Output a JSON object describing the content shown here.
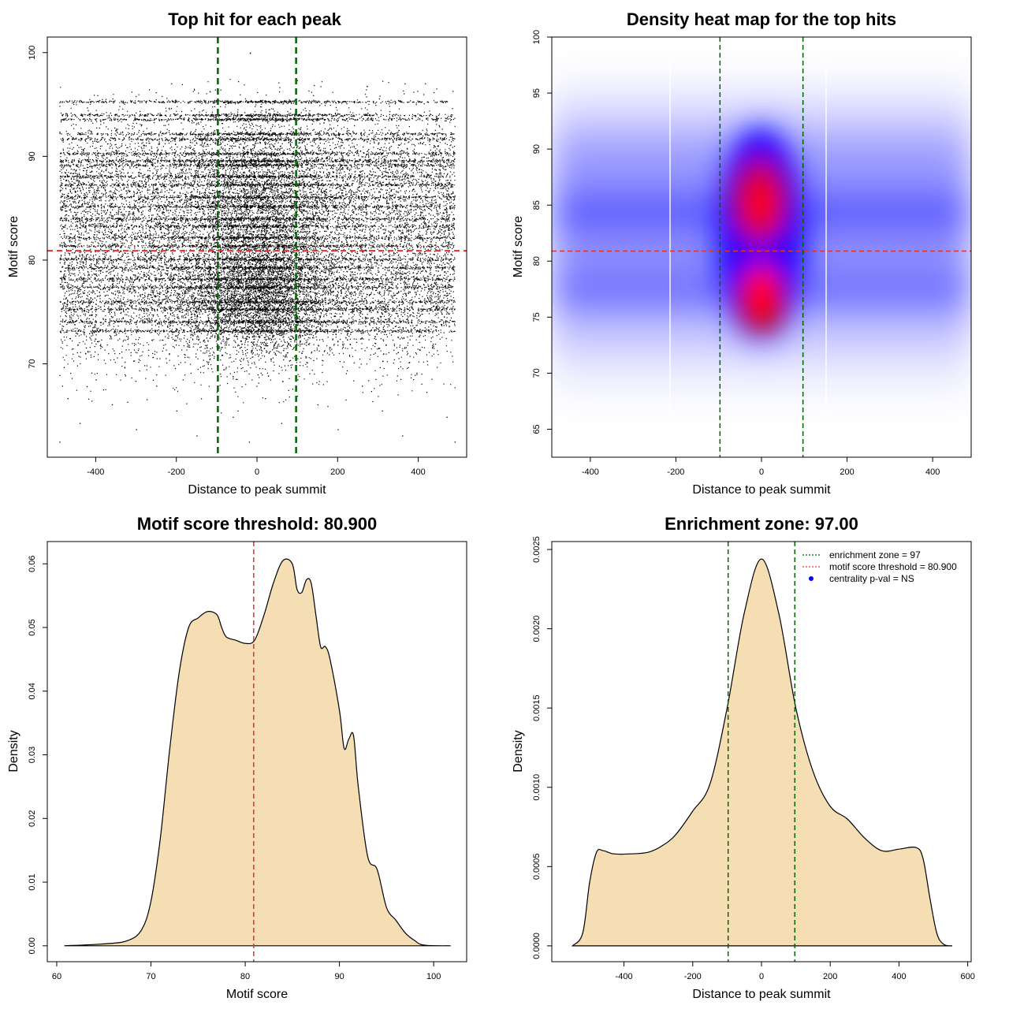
{
  "chart_data": [
    {
      "type": "scatter",
      "title": "Top hit for each peak",
      "xlabel": "Distance to peak summit",
      "ylabel": "Motif score",
      "xlim": [
        -520,
        520
      ],
      "ylim": [
        61,
        101.5
      ],
      "xticks": [
        -400,
        -200,
        0,
        200,
        400
      ],
      "yticks": [
        70,
        80,
        90,
        100
      ],
      "vlines": [
        -97,
        97
      ],
      "hline": 80.9,
      "series": [
        {
          "n_points": 30000,
          "x_range": [
            -490,
            490
          ],
          "y_range": [
            62,
            100
          ]
        }
      ],
      "grid": false
    },
    {
      "type": "heatmap",
      "title": "Density heat map for the top hits",
      "xlabel": "Distance to peak summit",
      "ylabel": "Motif score",
      "xlim": [
        -490,
        490
      ],
      "ylim": [
        62.5,
        100
      ],
      "xticks": [
        -400,
        -200,
        0,
        200,
        400
      ],
      "yticks": [
        65,
        70,
        75,
        80,
        85,
        90,
        95,
        100
      ],
      "vlines": [
        -97,
        97
      ],
      "hline": 80.9,
      "hotspots": [
        {
          "x": 0,
          "y": 76.5,
          "level": "max"
        },
        {
          "x": 0,
          "y": 85,
          "level": "high"
        }
      ],
      "colorscale": [
        "#ffffff",
        "#0000ff",
        "#ff0000"
      ]
    },
    {
      "type": "area",
      "title": "Motif score threshold: 80.900",
      "xlabel": "Motif score",
      "ylabel": "Density",
      "xlim": [
        59,
        103.5
      ],
      "ylim": [
        -0.0025,
        0.0635
      ],
      "xticks": [
        60,
        70,
        80,
        90,
        100
      ],
      "yticks": [
        0.0,
        0.01,
        0.02,
        0.03,
        0.04,
        0.05,
        0.06
      ],
      "ytick_labels": [
        "0.00",
        "0.01",
        "0.02",
        "0.03",
        "0.04",
        "0.05",
        "0.06"
      ],
      "vline": 80.9,
      "x": [
        60.8,
        65,
        67.5,
        69,
        70,
        71,
        72,
        73,
        74,
        75,
        76,
        77,
        77.5,
        78,
        79,
        80,
        81,
        82,
        83,
        84,
        85,
        85.5,
        86,
        86.5,
        87,
        87.5,
        88,
        88.5,
        89,
        90,
        90.5,
        91,
        91.5,
        92,
        93,
        94,
        95,
        96,
        97,
        98,
        99,
        101.8
      ],
      "y": [
        0.0,
        0.0003,
        0.0008,
        0.0025,
        0.007,
        0.017,
        0.031,
        0.043,
        0.05,
        0.0515,
        0.0525,
        0.052,
        0.05,
        0.0485,
        0.048,
        0.0475,
        0.048,
        0.052,
        0.057,
        0.0605,
        0.06,
        0.056,
        0.0555,
        0.0575,
        0.057,
        0.052,
        0.047,
        0.047,
        0.045,
        0.037,
        0.031,
        0.0325,
        0.033,
        0.025,
        0.014,
        0.012,
        0.006,
        0.004,
        0.002,
        0.0008,
        0.0001,
        0.0
      ],
      "fill": "#f5deb3"
    },
    {
      "type": "area",
      "title": "Enrichment zone: 97.00",
      "xlabel": "Distance to peak summit",
      "ylabel": "Density",
      "xlim": [
        -610,
        610
      ],
      "ylim": [
        -0.0001,
        0.00255
      ],
      "xticks": [
        -400,
        -200,
        0,
        200,
        400,
        600
      ],
      "yticks": [
        0.0,
        0.0005,
        0.001,
        0.0015,
        0.002,
        0.0025
      ],
      "ytick_labels": [
        "0.0000",
        "0.0005",
        "0.0010",
        "0.0015",
        "0.0020",
        "0.0025"
      ],
      "vlines": [
        -97,
        97
      ],
      "x": [
        -550,
        -520,
        -500,
        -480,
        -460,
        -430,
        -380,
        -330,
        -290,
        -250,
        -200,
        -150,
        -100,
        -50,
        0,
        50,
        100,
        150,
        200,
        250,
        300,
        350,
        400,
        450,
        470,
        490,
        510,
        530,
        555
      ],
      "y": [
        0.0,
        8e-05,
        0.0004,
        0.00059,
        0.0006,
        0.00058,
        0.00058,
        0.00059,
        0.00063,
        0.0007,
        0.00085,
        0.00102,
        0.0015,
        0.0021,
        0.00244,
        0.0021,
        0.0015,
        0.0011,
        0.00088,
        0.0008,
        0.00068,
        0.0006,
        0.00061,
        0.00062,
        0.00055,
        0.0003,
        8e-05,
        1e-05,
        0.0
      ],
      "fill": "#f5deb3",
      "legend": {
        "position": "top-right",
        "entries": [
          {
            "label": "enrichment zone = 97",
            "color": "#006400",
            "style": "dotted-line"
          },
          {
            "label": "motif score threshold = 80.900",
            "color": "#dd3333",
            "style": "dotted-line"
          },
          {
            "label": "centrality p-val = NS",
            "color": "#0000ff",
            "style": "point"
          }
        ]
      }
    }
  ]
}
